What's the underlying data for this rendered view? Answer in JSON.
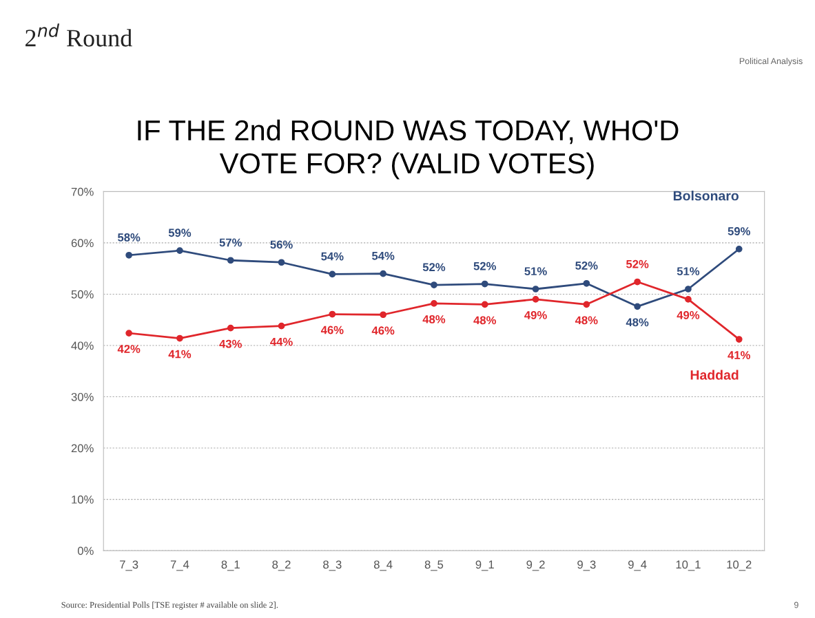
{
  "chart_data": {
    "type": "line",
    "title": "IF THE 2nd ROUND WAS TODAY, WHO'D\nVOTE FOR? (VALID VOTES)",
    "categories": [
      "7_3",
      "7_4",
      "8_1",
      "8_2",
      "8_3",
      "8_4",
      "8_5",
      "9_1",
      "9_2",
      "9_3",
      "9_4",
      "10_1",
      "10_2"
    ],
    "series": [
      {
        "name": "Bolsonaro",
        "color": "#2f4b7c",
        "values": [
          57.6,
          58.5,
          56.6,
          56.2,
          53.9,
          54.0,
          51.8,
          52.0,
          51.0,
          52.1,
          47.6,
          51.0,
          58.8
        ],
        "value_labels": [
          "58%",
          "59%",
          "57%",
          "56%",
          "54%",
          "54%",
          "52%",
          "52%",
          "51%",
          "52%",
          "48%",
          "51%",
          "59%"
        ]
      },
      {
        "name": "Haddad",
        "color": "#e0262b",
        "values": [
          42.4,
          41.4,
          43.4,
          43.8,
          46.1,
          46.0,
          48.2,
          48.0,
          49.0,
          48.0,
          52.4,
          49.0,
          41.2
        ],
        "value_labels": [
          "42%",
          "41%",
          "43%",
          "44%",
          "46%",
          "46%",
          "48%",
          "48%",
          "49%",
          "48%",
          "52%",
          "49%",
          "41%"
        ]
      }
    ],
    "ylim": [
      0,
      70
    ],
    "yticks": [
      {
        "value": 0,
        "label": "0%"
      },
      {
        "value": 10,
        "label": "10%"
      },
      {
        "value": 20,
        "label": "20%"
      },
      {
        "value": 30,
        "label": "30%"
      },
      {
        "value": 40,
        "label": "40%"
      },
      {
        "value": 50,
        "label": "50%"
      },
      {
        "value": 60,
        "label": "60%"
      },
      {
        "value": 70,
        "label": "70%"
      }
    ],
    "grid": "y",
    "marker": "circle",
    "line_style": "solid",
    "legend": false,
    "annotations": [
      "2$^{nd}$ Round",
      "Political Analysis",
      "Source: Presidential Polls [TSE register # available on slide 2].",
      "9"
    ]
  }
}
